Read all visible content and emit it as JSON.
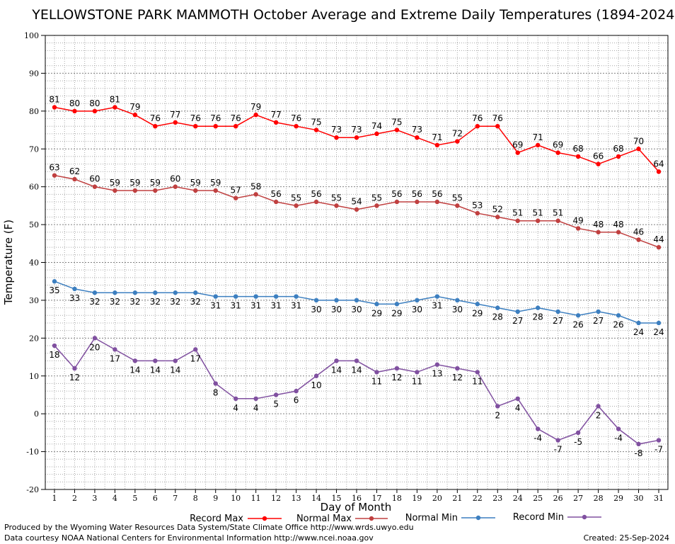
{
  "chart_data": {
    "type": "line",
    "title": "YELLOWSTONE PARK MAMMOTH October Average and Extreme Daily Temperatures (1894-2024)",
    "xlabel": "Day of Month",
    "ylabel": "Temperature (F)",
    "xlim": [
      1,
      31
    ],
    "ylim": [
      -20,
      100
    ],
    "y_major_step": 10,
    "grid": true,
    "legend_position": "bottom",
    "x": [
      1,
      2,
      3,
      4,
      5,
      6,
      7,
      8,
      9,
      10,
      11,
      12,
      13,
      14,
      15,
      16,
      17,
      18,
      19,
      20,
      21,
      22,
      23,
      24,
      25,
      26,
      27,
      28,
      29,
      30,
      31
    ],
    "series": [
      {
        "name": "Record Max",
        "color": "#ff0000",
        "label_position": "above",
        "values": [
          81,
          80,
          80,
          81,
          79,
          76,
          77,
          76,
          76,
          76,
          79,
          77,
          76,
          75,
          73,
          73,
          74,
          75,
          73,
          71,
          72,
          76,
          76,
          69,
          71,
          69,
          68,
          66,
          68,
          70,
          64
        ]
      },
      {
        "name": "Normal Max",
        "color": "#c04040",
        "label_position": "above",
        "values": [
          63,
          62,
          60,
          59,
          59,
          59,
          60,
          59,
          59,
          57,
          58,
          56,
          55,
          56,
          55,
          54,
          55,
          56,
          56,
          56,
          55,
          53,
          52,
          51,
          51,
          51,
          49,
          48,
          48,
          46,
          44
        ]
      },
      {
        "name": "Normal Min",
        "color": "#3c7fc0",
        "label_position": "below",
        "values": [
          35,
          33,
          32,
          32,
          32,
          32,
          32,
          32,
          31,
          31,
          31,
          31,
          31,
          30,
          30,
          30,
          29,
          29,
          30,
          31,
          30,
          29,
          28,
          27,
          28,
          27,
          26,
          27,
          26,
          24,
          24
        ]
      },
      {
        "name": "Record Min",
        "color": "#8050a0",
        "label_position": "below",
        "values": [
          18,
          12,
          20,
          17,
          14,
          14,
          14,
          17,
          8,
          4,
          4,
          5,
          6,
          10,
          14,
          14,
          11,
          12,
          11,
          13,
          12,
          11,
          2,
          4,
          -4,
          -7,
          -5,
          2,
          -4,
          -8,
          -7
        ]
      }
    ]
  },
  "footer": {
    "produced_by": "Produced by the Wyoming Water Resources Data System/State Climate Office http://www.wrds.uwyo.edu",
    "data_courtesy": "Data courtesy NOAA National Centers for Environmental Information http://www.ncei.noaa.gov",
    "created": "Created:  25-Sep-2024"
  }
}
